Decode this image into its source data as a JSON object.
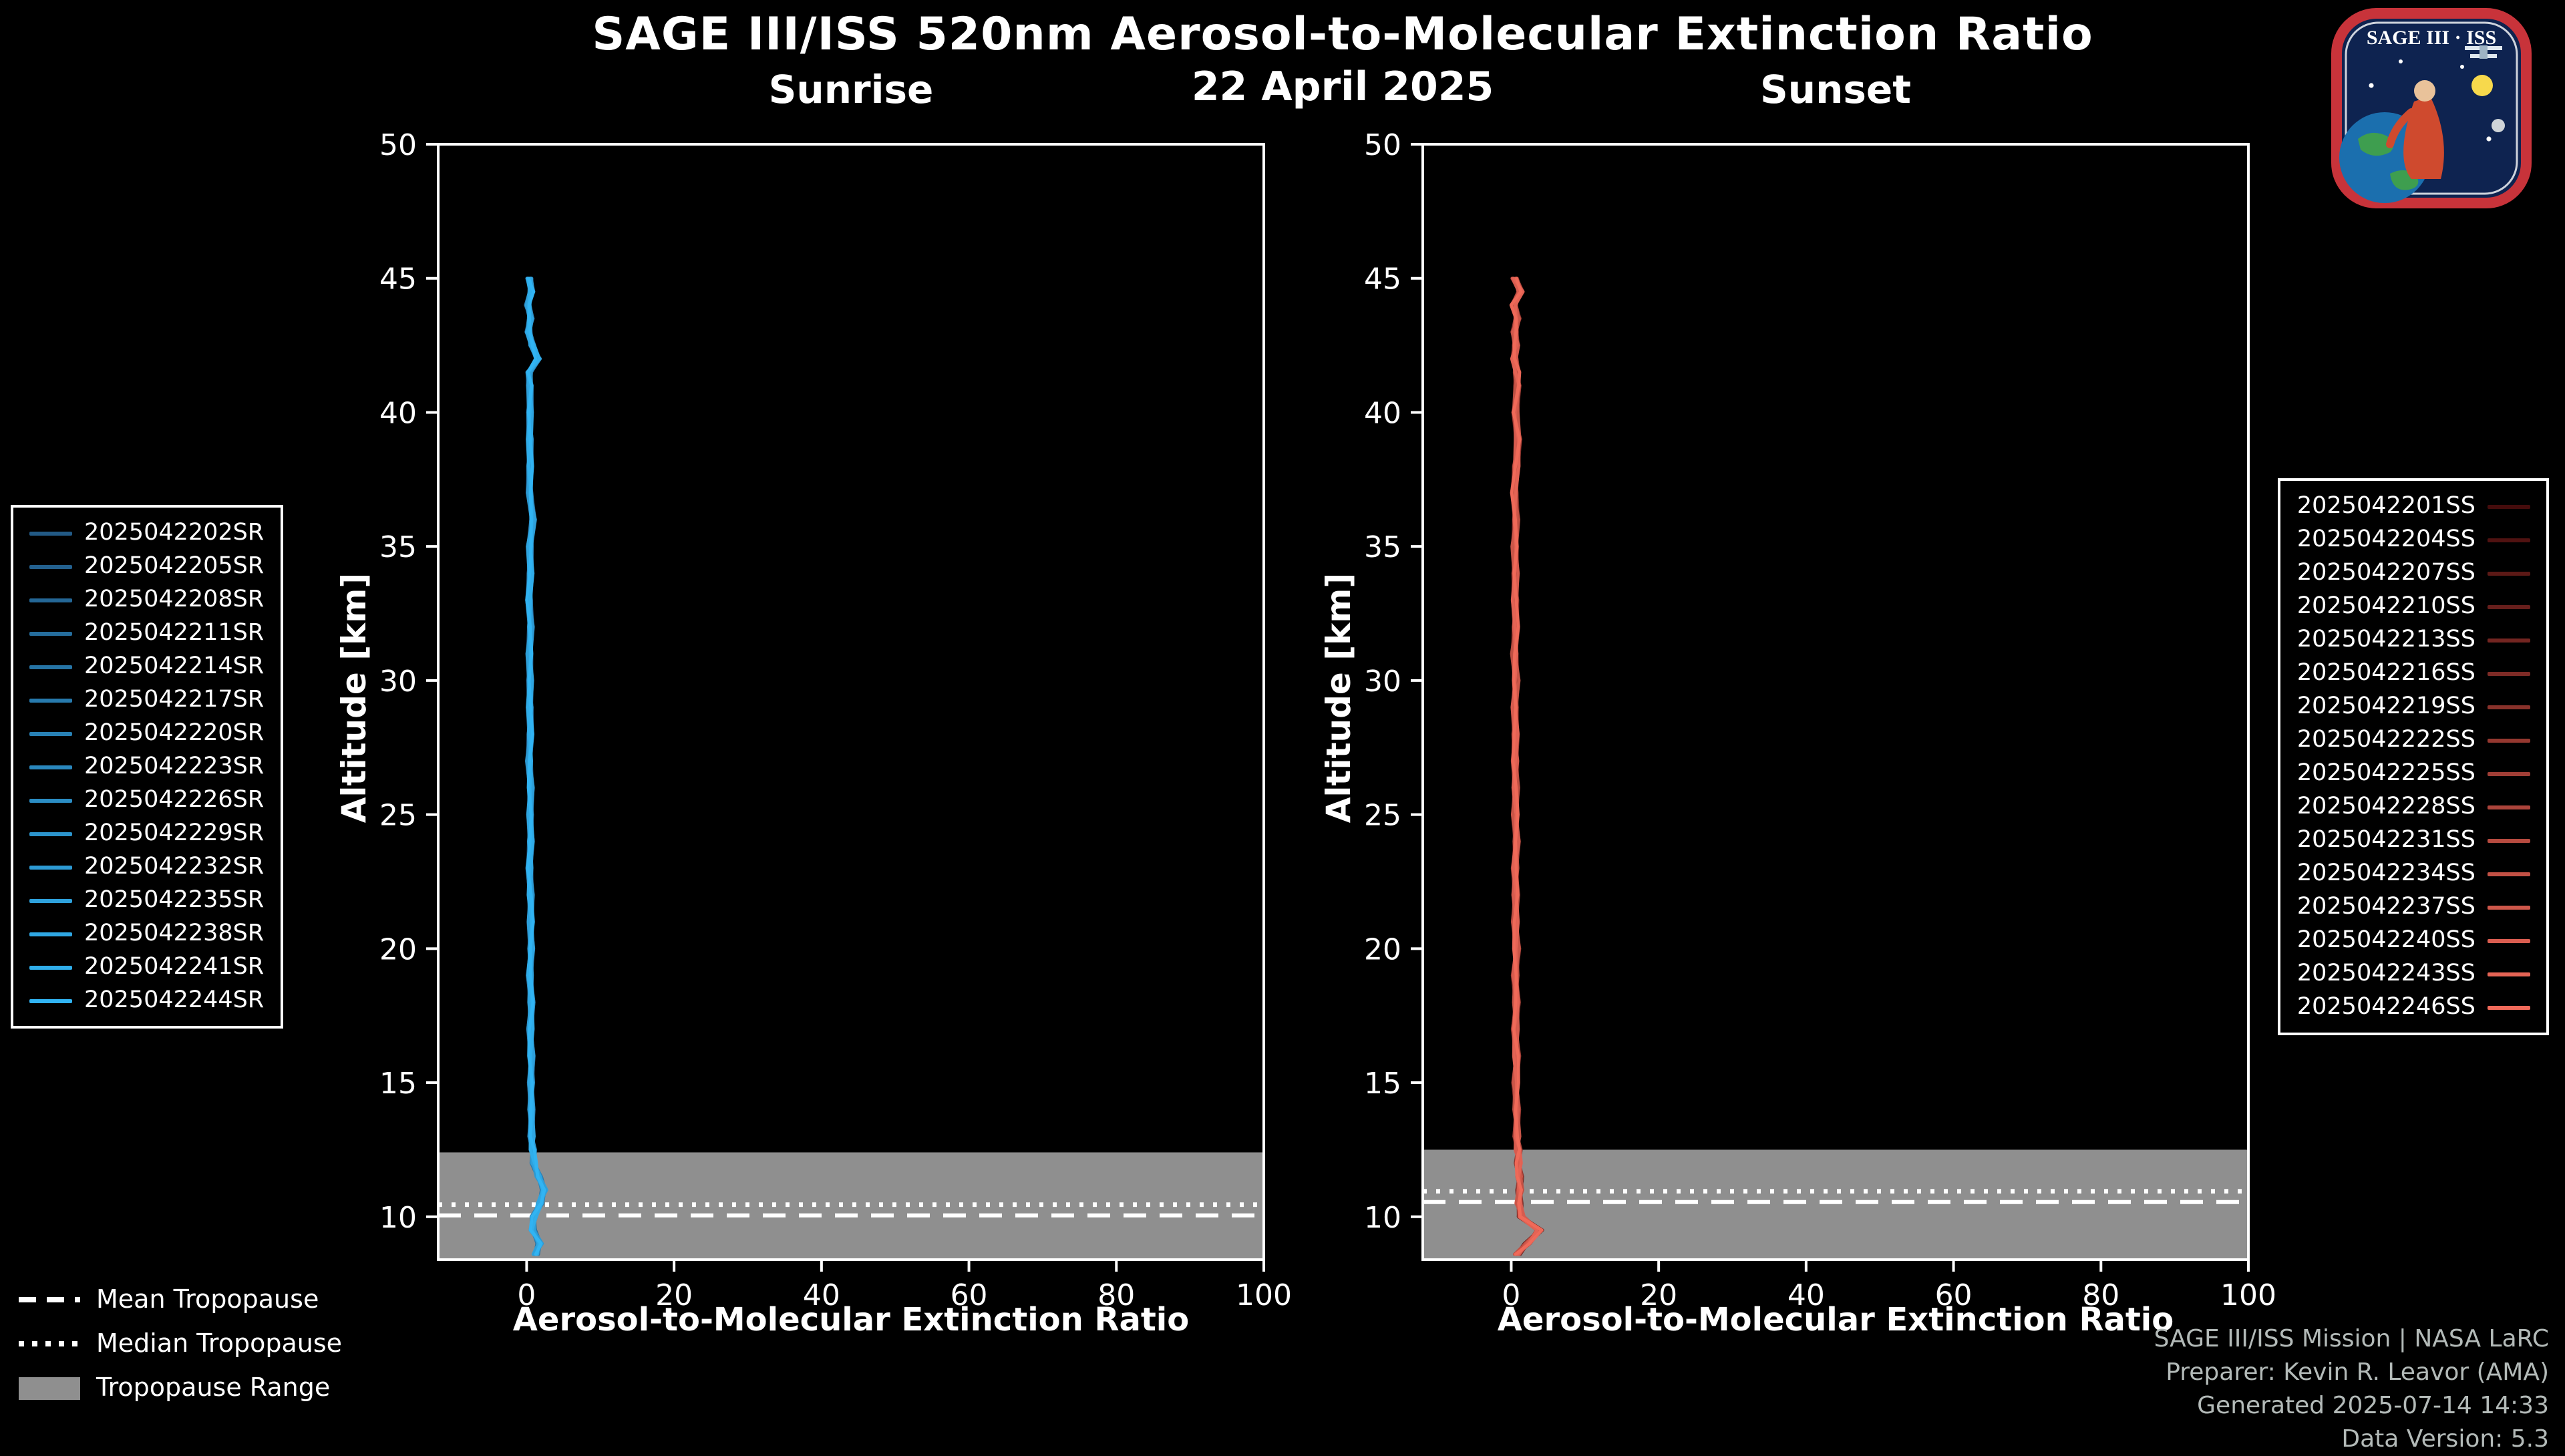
{
  "page": {
    "title": "SAGE III/ISS 520nm Aerosol-to-Molecular Extinction Ratio",
    "date": "22 April 2025"
  },
  "logo": {
    "text": "SAGE III · ISS"
  },
  "colors": {
    "background": "#000000",
    "foreground": "#ffffff",
    "tropopause_band": "#8f8f8f",
    "sunrise_start": "#225a86",
    "sunrise_end": "#31b4f3",
    "sunset_start": "#450c0c",
    "sunset_end": "#f06a5a",
    "logo_border": "#c8333a",
    "logo_bg": "#0e2350"
  },
  "tropopause_legend": [
    {
      "style": "dashed",
      "label": "Mean Tropopause"
    },
    {
      "style": "dotted",
      "label": "Median Tropopause"
    },
    {
      "style": "band",
      "label": "Tropopause Range",
      "color": "#8f8f8f"
    }
  ],
  "credits": {
    "lines": [
      "SAGE III/ISS Mission | NASA LaRC",
      "Preparer: Kevin R. Leavor (AMA)",
      "Generated 2025-07-14 14:33",
      "Data Version: 5.3"
    ]
  },
  "chart_data": [
    {
      "type": "line",
      "panel": "sunrise",
      "title": "Sunrise",
      "xlabel": "Aerosol-to-Molecular Extinction Ratio",
      "ylabel": "Altitude [km]",
      "xlim": [
        -12,
        100
      ],
      "ylim": [
        8.4,
        50
      ],
      "xticks": [
        0,
        20,
        40,
        60,
        80,
        100
      ],
      "yticks": [
        10,
        15,
        20,
        25,
        30,
        35,
        40,
        45,
        50
      ],
      "grid": false,
      "legend_position": "left",
      "color_start": "#225a86",
      "color_end": "#31b4f3",
      "band_color": "#8f8f8f",
      "jitter": 0.25,
      "tropopause": {
        "mean": 10.05,
        "median": 10.45,
        "range_top": 12.4,
        "range_bottom": 8.4
      },
      "series_labels": [
        "2025042202SR",
        "2025042205SR",
        "2025042208SR",
        "2025042211SR",
        "2025042214SR",
        "2025042217SR",
        "2025042220SR",
        "2025042223SR",
        "2025042226SR",
        "2025042229SR",
        "2025042232SR",
        "2025042235SR",
        "2025042238SR",
        "2025042241SR",
        "2025042244SR"
      ],
      "altitudes": [
        45,
        44.5,
        44,
        43.5,
        43,
        42.5,
        42,
        41.5,
        41,
        40,
        39,
        38,
        37,
        36,
        35,
        34,
        33,
        32,
        31,
        30,
        29,
        28,
        27,
        26,
        25,
        24,
        23,
        22,
        21,
        20,
        19,
        18,
        17,
        16,
        15,
        14,
        13,
        12.5,
        12,
        11.5,
        11,
        10.5,
        10,
        9.5,
        9,
        8.6
      ],
      "mean_profile": [
        0.4,
        0.6,
        0.2,
        0.5,
        0.3,
        0.7,
        1.6,
        0.3,
        0.5,
        0.4,
        0.5,
        0.4,
        0.45,
        0.8,
        0.5,
        0.45,
        0.4,
        0.5,
        0.45,
        0.4,
        0.5,
        0.45,
        0.4,
        0.5,
        0.55,
        0.5,
        0.45,
        0.5,
        0.6,
        0.55,
        0.5,
        0.6,
        0.55,
        0.6,
        0.65,
        0.6,
        0.7,
        0.8,
        1.0,
        1.6,
        2.4,
        1.8,
        1.0,
        0.8,
        1.8,
        1.2
      ]
    },
    {
      "type": "line",
      "panel": "sunset",
      "title": "Sunset",
      "xlabel": "Aerosol-to-Molecular Extinction Ratio",
      "ylabel": "Altitude [km]",
      "xlim": [
        -12,
        100
      ],
      "ylim": [
        8.4,
        50
      ],
      "xticks": [
        0,
        20,
        40,
        60,
        80,
        100
      ],
      "yticks": [
        10,
        15,
        20,
        25,
        30,
        35,
        40,
        45,
        50
      ],
      "grid": false,
      "legend_position": "right",
      "color_start": "#450c0c",
      "color_end": "#f06a5a",
      "band_color": "#8f8f8f",
      "jitter": 0.28,
      "tropopause": {
        "mean": 10.55,
        "median": 10.95,
        "range_top": 12.5,
        "range_bottom": 8.4
      },
      "series_labels": [
        "2025042201SS",
        "2025042204SS",
        "2025042207SS",
        "2025042210SS",
        "2025042213SS",
        "2025042216SS",
        "2025042219SS",
        "2025042222SS",
        "2025042225SS",
        "2025042228SS",
        "2025042231SS",
        "2025042234SS",
        "2025042237SS",
        "2025042240SS",
        "2025042243SS",
        "2025042246SS"
      ],
      "altitudes": [
        45,
        44.5,
        44,
        43.5,
        43,
        42.5,
        42,
        41.5,
        41,
        40,
        39,
        38,
        37,
        36,
        35,
        34,
        33,
        32,
        31,
        30,
        29,
        28,
        27,
        26,
        25,
        24,
        23,
        22,
        21,
        20,
        19,
        18,
        17,
        16,
        15,
        14,
        13,
        12.5,
        12,
        11.5,
        11,
        10.5,
        10,
        9.5,
        9,
        8.6
      ],
      "mean_profile": [
        0.5,
        1.2,
        0.4,
        0.8,
        0.5,
        0.6,
        0.5,
        0.7,
        0.9,
        0.5,
        1.0,
        0.6,
        0.5,
        0.6,
        0.55,
        0.5,
        0.6,
        0.55,
        0.5,
        0.6,
        0.55,
        0.5,
        0.6,
        0.55,
        0.6,
        0.65,
        0.6,
        0.55,
        0.6,
        0.7,
        0.6,
        0.65,
        0.6,
        0.7,
        0.65,
        0.7,
        0.8,
        0.9,
        1.0,
        1.1,
        1.2,
        1.0,
        1.4,
        3.8,
        2.2,
        0.8
      ]
    }
  ]
}
